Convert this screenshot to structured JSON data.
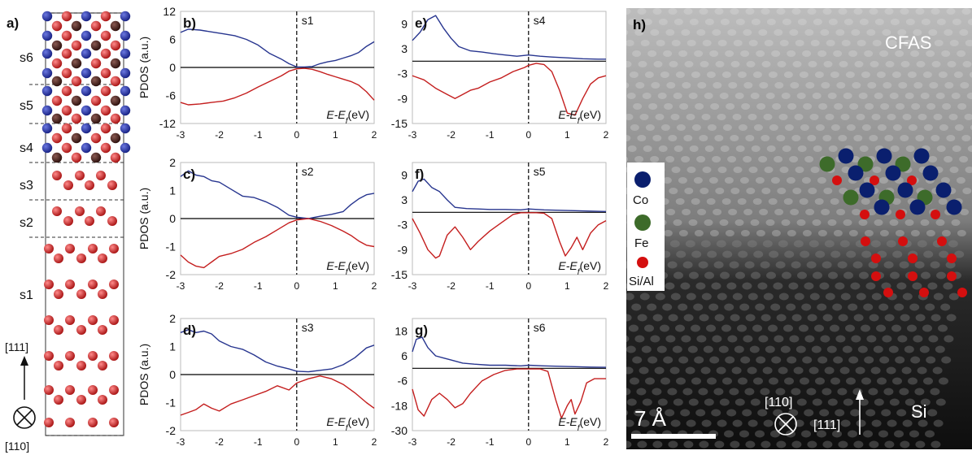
{
  "structure_panel": {
    "label": "a)",
    "slabs": [
      "s6",
      "s5",
      "s4",
      "s3",
      "s2",
      "s1"
    ],
    "direction_up": "[111]",
    "direction_into": "[110]",
    "colors": {
      "co": "#1c2aa6",
      "fe": "#4a1f1a",
      "si": "#d42020"
    }
  },
  "chart_data": [
    {
      "id": "b",
      "label": "b)",
      "type": "line",
      "slab": "s1",
      "ylabel": "PDOS (a.u.)",
      "xlabel": "E-Ef (eV)",
      "xlim": [
        -3,
        2
      ],
      "ylim": [
        -12,
        12
      ],
      "xticks": [
        -3,
        -2,
        -1,
        0,
        1,
        2
      ],
      "yticks": [
        12,
        6,
        0,
        -6,
        -12
      ],
      "series": [
        {
          "color": "#27358f",
          "x": [
            -3,
            -2.8,
            -2.5,
            -2.2,
            -1.9,
            -1.6,
            -1.3,
            -1.0,
            -0.7,
            -0.4,
            -0.2,
            0,
            0.2,
            0.4,
            0.6,
            0.8,
            1.0,
            1.2,
            1.4,
            1.6,
            1.8,
            2.0
          ],
          "y": [
            7.5,
            8.2,
            8.0,
            7.6,
            7.2,
            6.8,
            6.0,
            4.8,
            3.0,
            1.8,
            0.8,
            0.1,
            0.1,
            0.2,
            0.8,
            1.2,
            1.5,
            2.0,
            2.5,
            3.2,
            4.5,
            5.5
          ]
        },
        {
          "color": "#c41e1e",
          "x": [
            -3,
            -2.8,
            -2.5,
            -2.2,
            -1.9,
            -1.6,
            -1.3,
            -1.0,
            -0.7,
            -0.4,
            -0.2,
            0,
            0.2,
            0.4,
            0.6,
            0.8,
            1.0,
            1.2,
            1.4,
            1.6,
            1.8,
            2.0
          ],
          "y": [
            -7.5,
            -8.0,
            -7.8,
            -7.5,
            -7.2,
            -6.5,
            -5.5,
            -4.2,
            -3.0,
            -1.8,
            -0.8,
            -0.3,
            -0.2,
            -0.4,
            -0.9,
            -1.5,
            -2.0,
            -2.5,
            -3.0,
            -3.8,
            -5.2,
            -7.0
          ]
        }
      ]
    },
    {
      "id": "c",
      "label": "c)",
      "type": "line",
      "slab": "s2",
      "ylabel": "PDOS (a.u.)",
      "xlabel": "E-Ef (eV)",
      "xlim": [
        -3,
        2
      ],
      "ylim": [
        -2,
        2
      ],
      "xticks": [
        -3,
        -2,
        -1,
        0,
        1,
        2
      ],
      "yticks": [
        2,
        1,
        0,
        -1,
        -2
      ],
      "series": [
        {
          "color": "#27358f",
          "x": [
            -3,
            -2.8,
            -2.6,
            -2.4,
            -2.2,
            -2.0,
            -1.7,
            -1.4,
            -1.1,
            -0.8,
            -0.5,
            -0.2,
            0,
            0.3,
            0.6,
            0.9,
            1.2,
            1.4,
            1.6,
            1.8,
            2.0
          ],
          "y": [
            1.5,
            1.7,
            1.55,
            1.5,
            1.35,
            1.3,
            1.05,
            0.8,
            0.75,
            0.6,
            0.4,
            0.12,
            0.05,
            0.0,
            0.08,
            0.15,
            0.25,
            0.5,
            0.7,
            0.85,
            0.9
          ]
        },
        {
          "color": "#c41e1e",
          "x": [
            -3,
            -2.8,
            -2.6,
            -2.4,
            -2.2,
            -2.0,
            -1.7,
            -1.4,
            -1.1,
            -0.8,
            -0.5,
            -0.2,
            0,
            0.3,
            0.6,
            0.9,
            1.2,
            1.4,
            1.6,
            1.8,
            2.0
          ],
          "y": [
            -1.3,
            -1.55,
            -1.7,
            -1.75,
            -1.55,
            -1.35,
            -1.25,
            -1.1,
            -0.85,
            -0.65,
            -0.4,
            -0.15,
            -0.05,
            0.0,
            -0.1,
            -0.25,
            -0.45,
            -0.6,
            -0.8,
            -0.95,
            -1.0
          ]
        }
      ]
    },
    {
      "id": "d",
      "label": "d)",
      "type": "line",
      "slab": "s3",
      "ylabel": "PDOS (a.u.)",
      "xlabel": "E-Ef (eV)",
      "xlim": [
        -3,
        2
      ],
      "ylim": [
        -2,
        2
      ],
      "xticks": [
        -3,
        -2,
        -1,
        0,
        1,
        2
      ],
      "yticks": [
        2,
        1,
        0,
        -1,
        -2
      ],
      "series": [
        {
          "color": "#27358f",
          "x": [
            -3,
            -2.8,
            -2.6,
            -2.4,
            -2.2,
            -2.0,
            -1.7,
            -1.4,
            -1.1,
            -0.8,
            -0.5,
            -0.2,
            0,
            0.3,
            0.6,
            0.9,
            1.2,
            1.5,
            1.8,
            2.0
          ],
          "y": [
            1.5,
            1.6,
            1.5,
            1.55,
            1.45,
            1.2,
            1.0,
            0.9,
            0.7,
            0.45,
            0.3,
            0.2,
            0.12,
            0.1,
            0.15,
            0.2,
            0.35,
            0.6,
            0.95,
            1.05
          ]
        },
        {
          "color": "#c41e1e",
          "x": [
            -3,
            -2.8,
            -2.6,
            -2.4,
            -2.2,
            -2.0,
            -1.7,
            -1.4,
            -1.1,
            -0.8,
            -0.5,
            -0.2,
            0,
            0.3,
            0.6,
            0.9,
            1.2,
            1.5,
            1.8,
            2.0
          ],
          "y": [
            -1.45,
            -1.35,
            -1.25,
            -1.05,
            -1.2,
            -1.3,
            -1.05,
            -0.9,
            -0.75,
            -0.6,
            -0.4,
            -0.55,
            -0.3,
            -0.15,
            -0.05,
            -0.15,
            -0.35,
            -0.65,
            -1.0,
            -1.2
          ]
        }
      ]
    },
    {
      "id": "e",
      "label": "e)",
      "type": "line",
      "slab": "s4",
      "xlabel": "E-Ef (eV)",
      "xlim": [
        -3,
        2
      ],
      "ylim": [
        -15,
        12
      ],
      "xticks": [
        -3,
        -2,
        -1,
        0,
        1,
        2
      ],
      "yticks": [
        9,
        3,
        -3,
        -9,
        -15
      ],
      "series": [
        {
          "color": "#27358f",
          "x": [
            -3,
            -2.8,
            -2.6,
            -2.4,
            -2.2,
            -2.0,
            -1.8,
            -1.5,
            -1.2,
            -0.9,
            -0.6,
            -0.3,
            0,
            0.3,
            0.6,
            1.0,
            1.4,
            1.8,
            2.0
          ],
          "y": [
            5.0,
            7.0,
            10.0,
            11.0,
            8.0,
            5.5,
            3.5,
            2.5,
            2.2,
            1.8,
            1.5,
            1.2,
            1.5,
            1.2,
            1.0,
            0.8,
            0.6,
            0.5,
            0.5
          ]
        },
        {
          "color": "#c41e1e",
          "x": [
            -3,
            -2.7,
            -2.4,
            -2.1,
            -1.9,
            -1.7,
            -1.5,
            -1.3,
            -1.0,
            -0.7,
            -0.4,
            -0.1,
            0,
            0.2,
            0.4,
            0.6,
            0.8,
            1.0,
            1.2,
            1.4,
            1.6,
            1.8,
            2.0
          ],
          "y": [
            -3.5,
            -4.5,
            -6.5,
            -8.0,
            -9.0,
            -8.0,
            -7.0,
            -6.5,
            -5.0,
            -4.0,
            -2.5,
            -1.5,
            -1.0,
            -0.5,
            -0.8,
            -2.5,
            -7.0,
            -12.5,
            -13.0,
            -9.0,
            -5.5,
            -4.0,
            -3.5
          ]
        }
      ]
    },
    {
      "id": "f",
      "label": "f)",
      "type": "line",
      "slab": "s5",
      "xlabel": "E-Ef (eV)",
      "xlim": [
        -3,
        2
      ],
      "ylim": [
        -15,
        12
      ],
      "xticks": [
        -3,
        -2,
        -1,
        0,
        1,
        2
      ],
      "yticks": [
        9,
        3,
        -3,
        -9,
        -15
      ],
      "series": [
        {
          "color": "#27358f",
          "x": [
            -3,
            -2.85,
            -2.7,
            -2.5,
            -2.3,
            -2.1,
            -1.9,
            -1.6,
            -1.3,
            -1.0,
            -0.6,
            -0.2,
            0,
            0.4,
            0.8,
            1.2,
            1.6,
            2.0
          ],
          "y": [
            5.0,
            7.5,
            8.0,
            6.0,
            5.0,
            3.0,
            1.2,
            0.9,
            0.8,
            0.7,
            0.7,
            0.6,
            0.8,
            0.6,
            0.5,
            0.4,
            0.3,
            0.2
          ]
        },
        {
          "color": "#c41e1e",
          "x": [
            -3,
            -2.8,
            -2.6,
            -2.4,
            -2.3,
            -2.1,
            -1.9,
            -1.7,
            -1.5,
            -1.3,
            -1.0,
            -0.7,
            -0.4,
            -0.2,
            0,
            0.2,
            0.4,
            0.6,
            0.8,
            0.95,
            1.1,
            1.25,
            1.4,
            1.6,
            1.8,
            2.0
          ],
          "y": [
            -1.5,
            -5.0,
            -9.0,
            -11.0,
            -10.5,
            -5.5,
            -3.5,
            -6.0,
            -9.0,
            -7.0,
            -4.5,
            -2.5,
            -0.5,
            -0.1,
            -0.1,
            -0.1,
            -0.2,
            -1.5,
            -7.0,
            -10.5,
            -8.5,
            -6.0,
            -9.0,
            -5.0,
            -3.0,
            -2.0
          ]
        }
      ]
    },
    {
      "id": "g",
      "label": "g)",
      "type": "line",
      "slab": "s6",
      "xlabel": "E-Ef (eV)",
      "xlim": [
        -3,
        2
      ],
      "ylim": [
        -30,
        24
      ],
      "xticks": [
        -3,
        -2,
        -1,
        0,
        1,
        2
      ],
      "yticks": [
        18,
        6,
        -6,
        -18,
        -30
      ],
      "series": [
        {
          "color": "#27358f",
          "x": [
            -3,
            -2.9,
            -2.75,
            -2.6,
            -2.4,
            -2.2,
            -2.0,
            -1.7,
            -1.4,
            -1.0,
            -0.6,
            -0.2,
            0,
            0.4,
            0.8,
            1.2,
            1.6,
            2.0
          ],
          "y": [
            8.0,
            14.0,
            15.0,
            10.0,
            6.0,
            5.0,
            4.0,
            2.5,
            2.0,
            1.5,
            1.5,
            1.2,
            1.5,
            1.2,
            1.0,
            0.8,
            0.6,
            0.5
          ]
        },
        {
          "color": "#c41e1e",
          "x": [
            -3,
            -2.85,
            -2.7,
            -2.5,
            -2.3,
            -2.1,
            -1.9,
            -1.7,
            -1.5,
            -1.2,
            -0.9,
            -0.6,
            -0.3,
            0,
            0.3,
            0.5,
            0.7,
            0.85,
            1.0,
            1.1,
            1.2,
            1.35,
            1.5,
            1.7,
            2.0
          ],
          "y": [
            -10.0,
            -20.0,
            -23.0,
            -15.0,
            -12.0,
            -15.0,
            -19.0,
            -17.0,
            -12.0,
            -6.0,
            -3.0,
            -1.0,
            -0.3,
            -0.3,
            -0.3,
            -1.5,
            -15.0,
            -24.0,
            -18.0,
            -15.0,
            -22.0,
            -16.0,
            -7.0,
            -5.0,
            -5.0
          ]
        }
      ]
    }
  ],
  "image_panel": {
    "label": "h)",
    "material_top": "CFAS",
    "material_bottom": "Si",
    "scale_bar": "7 Å",
    "direction_into": "[110]",
    "direction_up": "[111]",
    "legend": [
      {
        "name": "Co",
        "color": "#0a1f6e"
      },
      {
        "name": "Fe",
        "color": "#3d6b2a"
      },
      {
        "name": "Si/Al",
        "color": "#d40f0f"
      }
    ]
  }
}
